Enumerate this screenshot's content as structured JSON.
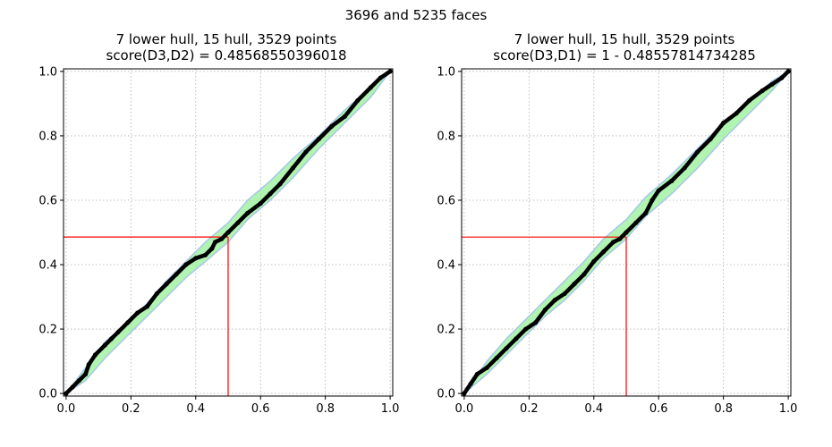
{
  "figure": {
    "suptitle": "3696 and 5235 faces"
  },
  "colors": {
    "curve": "#000000",
    "band_fill": "#90ee90",
    "hull_line": "#a6c8e8",
    "crosshair": "#ff0000",
    "grid": "#b0b0b0"
  },
  "chart_data": [
    {
      "type": "line",
      "title": "7 lower hull, 15 hull, 3529 points",
      "subtitle": "score(D3,D2) = 0.48568550396018",
      "xlabel": "",
      "ylabel": "",
      "xlim": [
        0,
        1
      ],
      "ylim": [
        0,
        1
      ],
      "xticks": [
        "0.0",
        "0.2",
        "0.4",
        "0.6",
        "0.8",
        "1.0"
      ],
      "yticks": [
        "0.0",
        "0.2",
        "0.4",
        "0.6",
        "0.8",
        "1.0"
      ],
      "grid": true,
      "crosshair": {
        "x": 0.5,
        "y": 0.4857
      },
      "series": [
        {
          "x": [
            0,
            0.02,
            0.04,
            0.06,
            0.07,
            0.09,
            0.12,
            0.14,
            0.16,
            0.19,
            0.22,
            0.25,
            0.28,
            0.31,
            0.34,
            0.37,
            0.4,
            0.43,
            0.45,
            0.46,
            0.48,
            0.5,
            0.53,
            0.56,
            0.6,
            0.63,
            0.66,
            0.7,
            0.74,
            0.78,
            0.82,
            0.86,
            0.9,
            0.94,
            0.97,
            1.0
          ],
          "y": [
            0,
            0.02,
            0.04,
            0.06,
            0.09,
            0.12,
            0.15,
            0.17,
            0.19,
            0.22,
            0.25,
            0.27,
            0.31,
            0.34,
            0.37,
            0.4,
            0.42,
            0.43,
            0.45,
            0.47,
            0.48,
            0.5,
            0.53,
            0.56,
            0.59,
            0.62,
            0.65,
            0.7,
            0.75,
            0.79,
            0.83,
            0.86,
            0.91,
            0.95,
            0.98,
            1.0
          ]
        }
      ],
      "band_upper": {
        "x": [
          0,
          0.06,
          0.12,
          0.19,
          0.25,
          0.31,
          0.37,
          0.43,
          0.5,
          0.56,
          0.63,
          0.7,
          0.78,
          0.86,
          0.94,
          1.0
        ],
        "y": [
          0.0,
          0.08,
          0.16,
          0.22,
          0.28,
          0.35,
          0.41,
          0.47,
          0.53,
          0.6,
          0.66,
          0.73,
          0.8,
          0.88,
          0.95,
          1.0
        ]
      },
      "band_lower": {
        "x": [
          0,
          0.06,
          0.12,
          0.19,
          0.25,
          0.31,
          0.37,
          0.43,
          0.5,
          0.56,
          0.63,
          0.7,
          0.78,
          0.86,
          0.94,
          1.0
        ],
        "y": [
          0.0,
          0.04,
          0.11,
          0.18,
          0.24,
          0.3,
          0.36,
          0.41,
          0.47,
          0.54,
          0.6,
          0.67,
          0.76,
          0.84,
          0.92,
          1.0
        ]
      }
    },
    {
      "type": "line",
      "title": "7 lower hull, 15 hull, 3529 points",
      "subtitle": "score(D3,D1) = 1 - 0.48557814734285",
      "xlabel": "",
      "ylabel": "",
      "xlim": [
        0,
        1
      ],
      "ylim": [
        0,
        1
      ],
      "xticks": [
        "0.0",
        "0.2",
        "0.4",
        "0.6",
        "0.8",
        "1.0"
      ],
      "yticks": [
        "0.0",
        "0.2",
        "0.4",
        "0.6",
        "0.8",
        "1.0"
      ],
      "grid": true,
      "crosshair": {
        "x": 0.5,
        "y": 0.4856
      },
      "series": [
        {
          "x": [
            0,
            0.02,
            0.04,
            0.07,
            0.1,
            0.13,
            0.16,
            0.19,
            0.22,
            0.25,
            0.28,
            0.31,
            0.34,
            0.37,
            0.4,
            0.43,
            0.46,
            0.48,
            0.5,
            0.53,
            0.56,
            0.58,
            0.6,
            0.64,
            0.68,
            0.72,
            0.76,
            0.8,
            0.84,
            0.88,
            0.92,
            0.95,
            0.98,
            1.0
          ],
          "y": [
            0,
            0.03,
            0.06,
            0.08,
            0.11,
            0.14,
            0.17,
            0.2,
            0.22,
            0.26,
            0.29,
            0.31,
            0.34,
            0.37,
            0.41,
            0.44,
            0.47,
            0.48,
            0.5,
            0.53,
            0.56,
            0.6,
            0.63,
            0.66,
            0.7,
            0.75,
            0.79,
            0.84,
            0.87,
            0.91,
            0.94,
            0.96,
            0.98,
            1.0
          ]
        }
      ],
      "band_upper": {
        "x": [
          0,
          0.07,
          0.13,
          0.19,
          0.25,
          0.31,
          0.37,
          0.43,
          0.5,
          0.56,
          0.64,
          0.72,
          0.8,
          0.88,
          0.95,
          1.0
        ],
        "y": [
          0.0,
          0.1,
          0.17,
          0.23,
          0.29,
          0.35,
          0.41,
          0.48,
          0.54,
          0.61,
          0.68,
          0.76,
          0.84,
          0.91,
          0.97,
          1.0
        ]
      },
      "band_lower": {
        "x": [
          0,
          0.07,
          0.13,
          0.19,
          0.25,
          0.31,
          0.37,
          0.43,
          0.5,
          0.56,
          0.64,
          0.72,
          0.8,
          0.88,
          0.95,
          1.0
        ],
        "y": [
          0.0,
          0.06,
          0.12,
          0.18,
          0.24,
          0.29,
          0.35,
          0.42,
          0.48,
          0.55,
          0.62,
          0.7,
          0.79,
          0.87,
          0.94,
          1.0
        ]
      }
    }
  ]
}
